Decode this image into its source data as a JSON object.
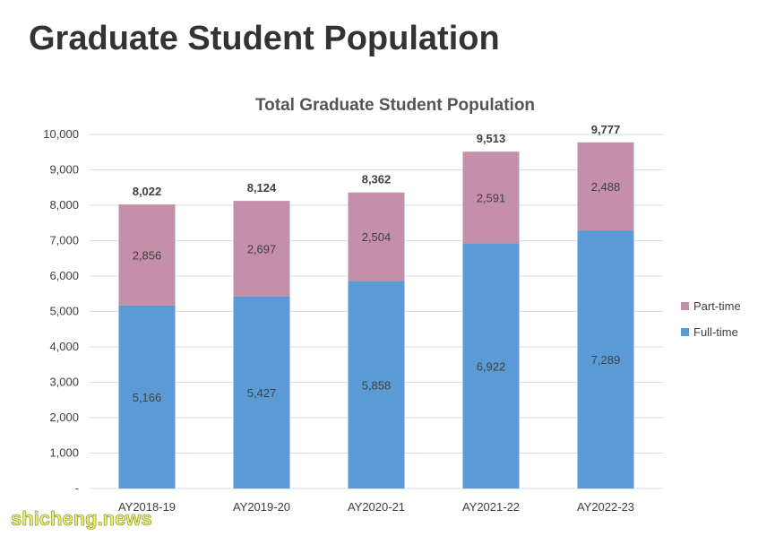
{
  "page": {
    "title": "Graduate Student Population",
    "watermark": "shicheng.news"
  },
  "colors": {
    "full_time": "#5b9bd5",
    "part_time": "#c48fa8",
    "grid": "#d9d9d9",
    "text": "#404040"
  },
  "chart_data": {
    "type": "bar",
    "stacked": true,
    "title": "Total Graduate Student Population",
    "categories": [
      "AY2018-19",
      "AY2019-20",
      "AY2020-21",
      "AY2021-22",
      "AY2022-23"
    ],
    "series": [
      {
        "name": "Full-time",
        "values": [
          5166,
          5427,
          5858,
          6922,
          7289
        ],
        "labels": [
          "5,166",
          "5,427",
          "5,858",
          "6,922",
          "7,289"
        ]
      },
      {
        "name": "Part-time",
        "values": [
          2856,
          2697,
          2504,
          2591,
          2488
        ],
        "labels": [
          "2,856",
          "2,697",
          "2,504",
          "2,591",
          "2,488"
        ]
      }
    ],
    "totals": [
      "8,022",
      "8,124",
      "8,362",
      "9,513",
      "9,777"
    ],
    "ylim": [
      0,
      10000
    ],
    "yticks": [
      0,
      1000,
      2000,
      3000,
      4000,
      5000,
      6000,
      7000,
      8000,
      9000,
      10000
    ],
    "ytick_labels": [
      "-",
      "1,000",
      "2,000",
      "3,000",
      "4,000",
      "5,000",
      "6,000",
      "7,000",
      "8,000",
      "9,000",
      "10,000"
    ],
    "grid": true,
    "legend": {
      "position": "right",
      "entries": [
        "Part-time",
        "Full-time"
      ]
    }
  }
}
